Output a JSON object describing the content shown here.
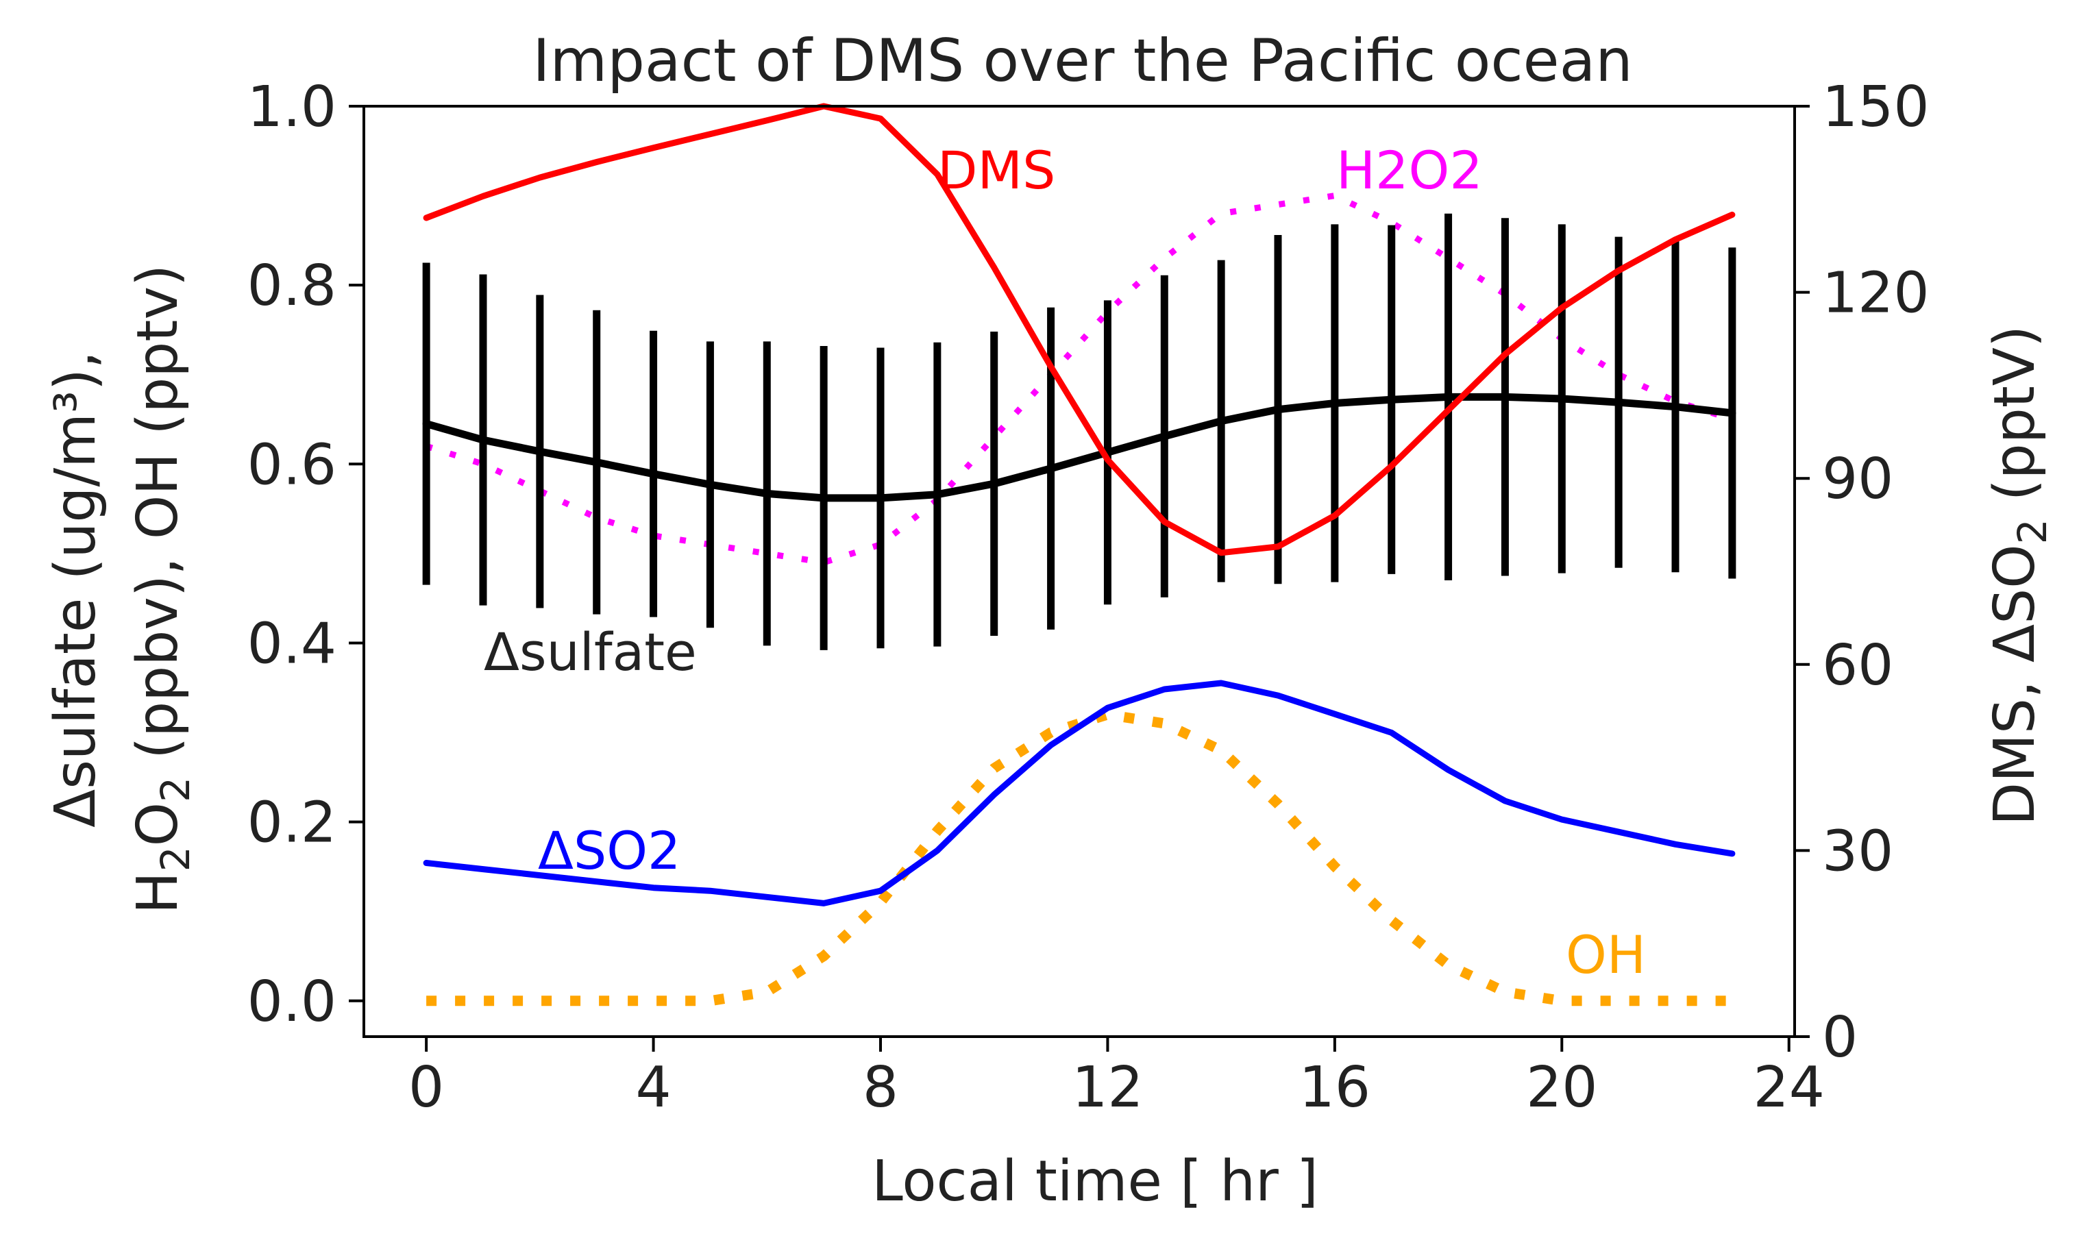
{
  "chart_data": {
    "type": "line",
    "title": "Impact of DMS over the Pacific ocean",
    "xlabel": "Local time [ hr ]",
    "ylabel_left_line1": "Δsulfate (ug/m³),",
    "ylabel_left_line2_pre": "H",
    "ylabel_left_line2_sub1": "2",
    "ylabel_left_line2_mid": "O",
    "ylabel_left_line2_sub2": "2",
    "ylabel_left_line2_post": " (ppbv), OH (pptv)",
    "ylabel_right_pre": "DMS, ΔSO",
    "ylabel_right_sub": "2",
    "ylabel_right_post": " (pptV)",
    "xlim": [
      -1.1,
      24.1
    ],
    "ylim_left": [
      -0.04,
      1.0
    ],
    "ylim_right": [
      0,
      150
    ],
    "x_ticks": [
      0,
      4,
      8,
      12,
      16,
      20,
      24
    ],
    "y_ticks_left": [
      "0.0",
      "0.2",
      "0.4",
      "0.6",
      "0.8",
      "1.0"
    ],
    "y_ticks_right": [
      "0",
      "30",
      "60",
      "90",
      "120",
      "150"
    ],
    "x": [
      0,
      1,
      2,
      3,
      4,
      5,
      6,
      7,
      8,
      9,
      10,
      11,
      12,
      13,
      14,
      15,
      16,
      17,
      18,
      19,
      20,
      21,
      22,
      23
    ],
    "series": [
      {
        "name": "DMS",
        "label": "DMS",
        "axis": "right",
        "color": "#ff0000",
        "style": "solid",
        "values": [
          132,
          135.5,
          138.5,
          141,
          143.3,
          145.5,
          147.7,
          150,
          148,
          139,
          124,
          108,
          93,
          83,
          78,
          79,
          84,
          92,
          101,
          110,
          117.5,
          123.5,
          128.5,
          132.5
        ]
      },
      {
        "name": "H2O2",
        "label": "H2O2",
        "axis": "left",
        "color": "#ff00ff",
        "style": "dotted",
        "values": [
          0.62,
          0.6,
          0.57,
          0.54,
          0.52,
          0.51,
          0.5,
          0.49,
          0.51,
          0.56,
          0.63,
          0.7,
          0.77,
          0.83,
          0.88,
          0.89,
          0.9,
          0.87,
          0.83,
          0.79,
          0.74,
          0.7,
          0.67,
          0.65
        ]
      },
      {
        "name": "sulfate",
        "label": "Δsulfate",
        "axis": "left",
        "color": "#000000",
        "style": "solid",
        "values": [
          0.645,
          0.627,
          0.614,
          0.602,
          0.589,
          0.577,
          0.567,
          0.562,
          0.562,
          0.566,
          0.578,
          0.595,
          0.613,
          0.631,
          0.648,
          0.661,
          0.668,
          0.672,
          0.675,
          0.675,
          0.673,
          0.669,
          0.664,
          0.657
        ],
        "error": [
          0.18,
          0.185,
          0.175,
          0.17,
          0.16,
          0.16,
          0.17,
          0.17,
          0.168,
          0.17,
          0.17,
          0.18,
          0.17,
          0.18,
          0.18,
          0.195,
          0.2,
          0.195,
          0.205,
          0.2,
          0.195,
          0.185,
          0.185,
          0.185
        ]
      },
      {
        "name": "SO2",
        "label": "ΔSO2",
        "axis": "right",
        "color": "#0000ff",
        "style": "solid",
        "values": [
          28,
          27,
          26,
          25,
          24,
          23.5,
          22.5,
          21.5,
          23.5,
          30,
          39,
          47,
          53,
          56,
          57,
          55,
          52,
          49,
          43,
          38,
          35,
          33,
          31,
          29.5
        ]
      },
      {
        "name": "OH",
        "label": "OH",
        "axis": "left",
        "color": "#ffa500",
        "style": "dotted",
        "values": [
          0,
          0,
          0,
          0,
          0,
          0,
          0.01,
          0.05,
          0.11,
          0.19,
          0.26,
          0.3,
          0.32,
          0.31,
          0.28,
          0.22,
          0.15,
          0.09,
          0.04,
          0.01,
          0,
          0,
          0,
          0
        ]
      }
    ]
  }
}
